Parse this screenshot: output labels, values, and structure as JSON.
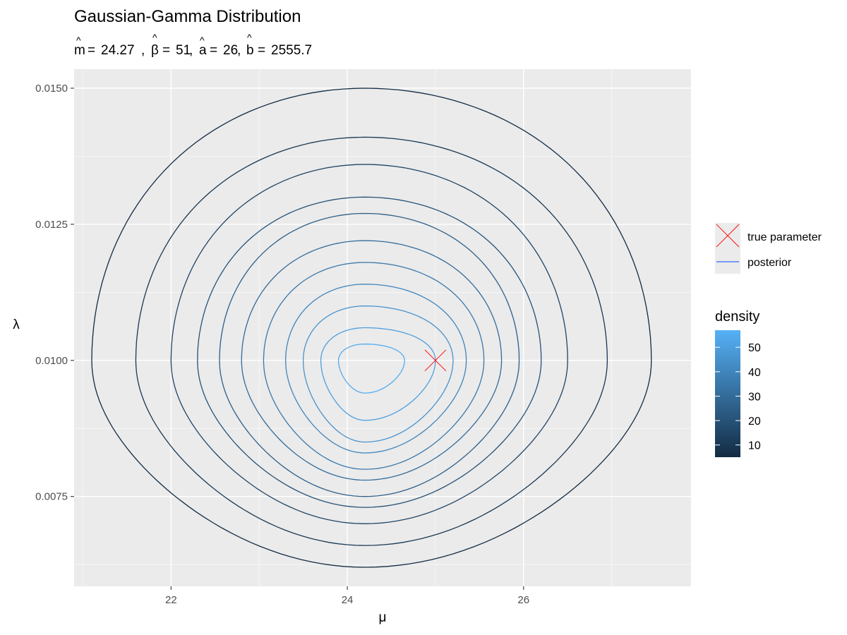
{
  "chart_data": {
    "type": "contour",
    "title": "Gaussian-Gamma Distribution",
    "subtitle": {
      "m_hat": "24.27",
      "beta_hat": "51",
      "a_hat": "26",
      "b_hat": "2555.7"
    },
    "xlabel": "μ",
    "ylabel": "λ",
    "xlim": [
      20.9,
      27.9
    ],
    "ylim": [
      0.00585,
      0.01535
    ],
    "x_ticks": [
      22,
      24,
      26
    ],
    "x_tick_labels": [
      "22",
      "24",
      "26"
    ],
    "y_ticks": [
      0.0075,
      0.01,
      0.0125,
      0.015
    ],
    "y_tick_labels": [
      "0.0075",
      "0.0100",
      "0.0125",
      "0.0150"
    ],
    "grid": true,
    "panel_background": "#ebebeb",
    "true_parameter": {
      "mu": 25.0,
      "lambda": 0.01,
      "color": "#ff0000"
    },
    "contour_center": {
      "mu": 24.2,
      "lambda": 0.01
    },
    "contour_levels": [
      {
        "level": 5,
        "mu_min": 21.1,
        "mu_max": 27.45,
        "lambda_min": 0.0062,
        "lambda_max": 0.015
      },
      {
        "level": 10,
        "mu_min": 21.6,
        "mu_max": 26.95,
        "lambda_min": 0.0066,
        "lambda_max": 0.0141
      },
      {
        "level": 15,
        "mu_min": 22.0,
        "mu_max": 26.5,
        "lambda_min": 0.007,
        "lambda_max": 0.0136
      },
      {
        "level": 20,
        "mu_min": 22.3,
        "mu_max": 26.2,
        "lambda_min": 0.0073,
        "lambda_max": 0.013
      },
      {
        "level": 25,
        "mu_min": 22.55,
        "mu_max": 25.95,
        "lambda_min": 0.0075,
        "lambda_max": 0.0127
      },
      {
        "level": 30,
        "mu_min": 22.8,
        "mu_max": 25.75,
        "lambda_min": 0.0078,
        "lambda_max": 0.0122
      },
      {
        "level": 35,
        "mu_min": 23.05,
        "mu_max": 25.55,
        "lambda_min": 0.008,
        "lambda_max": 0.0118
      },
      {
        "level": 40,
        "mu_min": 23.3,
        "mu_max": 25.35,
        "lambda_min": 0.0083,
        "lambda_max": 0.0114
      },
      {
        "level": 45,
        "mu_min": 23.5,
        "mu_max": 25.2,
        "lambda_min": 0.0085,
        "lambda_max": 0.011
      },
      {
        "level": 50,
        "mu_min": 23.7,
        "mu_max": 25.0,
        "lambda_min": 0.0089,
        "lambda_max": 0.0106
      },
      {
        "level": 55,
        "mu_min": 23.9,
        "mu_max": 24.65,
        "lambda_min": 0.0094,
        "lambda_max": 0.0103
      }
    ],
    "legend": {
      "items": [
        {
          "label": "true parameter",
          "icon": "x-mark-icon",
          "color": "#ff0000"
        },
        {
          "label": "posterior",
          "icon": "line-icon",
          "color": "#3366ff"
        }
      ],
      "colorbar": {
        "title": "density",
        "ticks": [
          10,
          20,
          30,
          40,
          50
        ],
        "tick_labels": [
          "10",
          "20",
          "30",
          "40",
          "50"
        ],
        "range": [
          5,
          57
        ],
        "low_color": "#132b43",
        "high_color": "#56b1f7"
      },
      "placement": "right"
    }
  }
}
